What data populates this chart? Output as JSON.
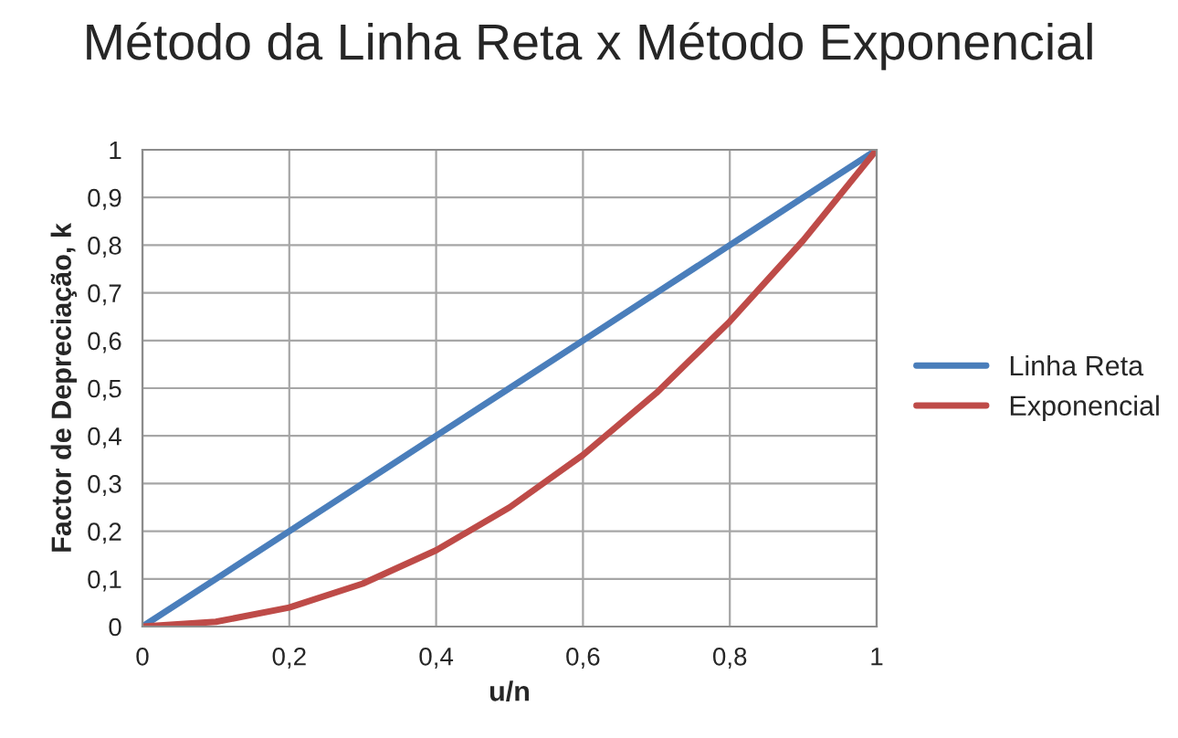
{
  "chart_data": {
    "type": "line",
    "title": "Método da Linha Reta x Método Exponencial",
    "xlabel": "u/n",
    "ylabel": "Factor de Depreciação, k",
    "x": [
      0,
      0.1,
      0.2,
      0.3,
      0.4,
      0.5,
      0.6,
      0.7,
      0.8,
      0.9,
      1
    ],
    "series": [
      {
        "name": "Linha Reta",
        "color": "#4a7ebb",
        "values": [
          0,
          0.1,
          0.2,
          0.3,
          0.4,
          0.5,
          0.6,
          0.7,
          0.8,
          0.9,
          1
        ]
      },
      {
        "name": "Exponencial",
        "color": "#be4b48",
        "values": [
          0,
          0.01,
          0.04,
          0.09,
          0.16,
          0.25,
          0.36,
          0.49,
          0.64,
          0.81,
          1
        ]
      }
    ],
    "xlim": [
      0,
      1
    ],
    "ylim": [
      0,
      1
    ],
    "xticks": [
      0,
      {
        "value": 0.2,
        "label": "0,2"
      },
      {
        "value": 0.4,
        "label": "0,4"
      },
      {
        "value": 0.6,
        "label": "0,6"
      },
      {
        "value": 0.8,
        "label": "0,8"
      },
      1
    ],
    "yticks": [
      0,
      {
        "value": 0.1,
        "label": "0,1"
      },
      {
        "value": 0.2,
        "label": "0,2"
      },
      {
        "value": 0.3,
        "label": "0,3"
      },
      {
        "value": 0.4,
        "label": "0,4"
      },
      {
        "value": 0.5,
        "label": "0,5"
      },
      {
        "value": 0.6,
        "label": "0,6"
      },
      {
        "value": 0.7,
        "label": "0,7"
      },
      {
        "value": 0.8,
        "label": "0,8"
      },
      {
        "value": 0.9,
        "label": "0,9"
      },
      1
    ],
    "grid": true,
    "legend": "right",
    "marker": "none",
    "line_style": "solid"
  }
}
